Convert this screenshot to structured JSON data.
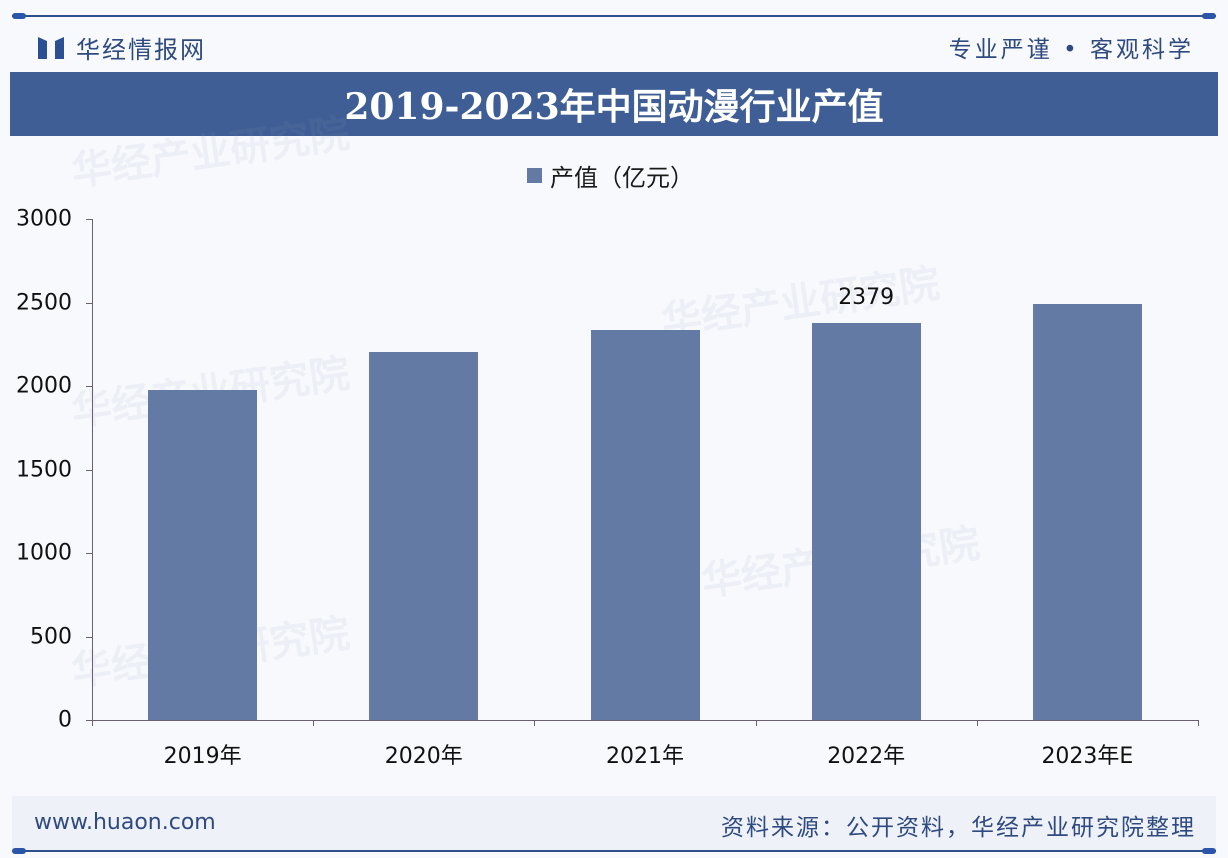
{
  "header": {
    "brand": "华经情报网",
    "slogan": "专业严谨 • 客观科学",
    "title": "2019-2023年中国动漫行业产值"
  },
  "legend": {
    "label": "产值（亿元）",
    "color": "#637ba4"
  },
  "footer": {
    "url": "www.huaon.com",
    "source": "资料来源：公开资料，华经产业研究院整理"
  },
  "watermark": {
    "text": "华经产业研究院",
    "url": "www.huaon.com"
  },
  "chart_data": {
    "type": "bar",
    "title": "2019-2023年中国动漫行业产值",
    "xlabel": "",
    "ylabel": "",
    "categories": [
      "2019年",
      "2020年",
      "2021年",
      "2022年",
      "2023年E"
    ],
    "series": [
      {
        "name": "产值（亿元）",
        "values": [
          1976,
          2204,
          2335,
          2379,
          2490
        ],
        "color": "#637ba4"
      }
    ],
    "data_labels": {
      "2022年": "2379"
    },
    "ylim": [
      0,
      3000
    ],
    "yticks": [
      0,
      500,
      1000,
      1500,
      2000,
      2500,
      3000
    ],
    "grid": false,
    "legend_position": "top"
  }
}
